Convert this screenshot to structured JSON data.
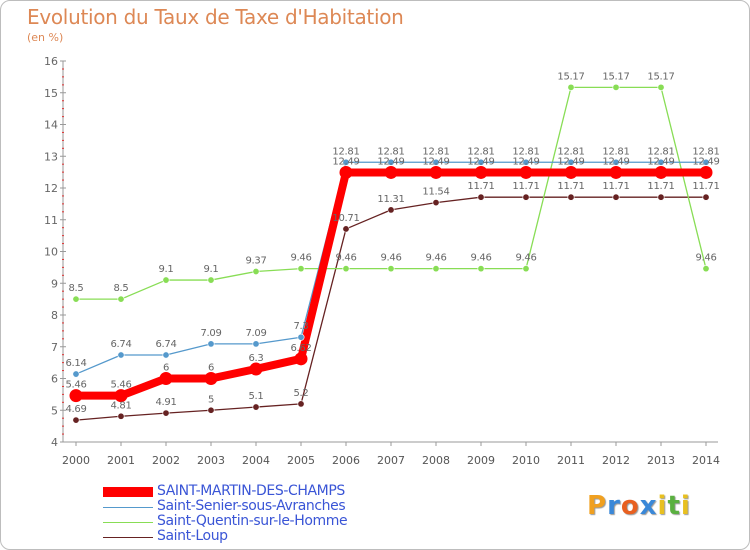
{
  "header": {
    "title": "Evolution du Taux de Taxe d'Habitation",
    "unit": "(en %)"
  },
  "brand": {
    "logo_text": "Proxiti"
  },
  "colors": {
    "saint_martin": "#ff0000",
    "saint_senier": "#5599cc",
    "saint_quentin": "#88dd55",
    "saint_loup": "#662222",
    "axis": "#888888",
    "title": "#dd8855",
    "legend_text": "#3a55d6"
  },
  "chart_data": {
    "type": "line",
    "title": "Evolution du Taux de Taxe d'Habitation",
    "subtitle": "(en %)",
    "xlabel": "",
    "ylabel": "",
    "x": [
      "2000",
      "2001",
      "2002",
      "2003",
      "2004",
      "2005",
      "2006",
      "2007",
      "2008",
      "2009",
      "2010",
      "2011",
      "2012",
      "2013",
      "2014"
    ],
    "ylim": [
      4,
      16
    ],
    "yticks": [
      "4",
      "5",
      "6",
      "7",
      "8",
      "9",
      "10",
      "11",
      "12",
      "13",
      "14",
      "15",
      "16"
    ],
    "grid": false,
    "legend_position": "bottom-left",
    "series": [
      {
        "name": "SAINT-MARTIN-DES-CHAMPS",
        "color": "#ff0000",
        "values": [
          5.46,
          5.46,
          6,
          6,
          6.3,
          6.62,
          12.49,
          12.49,
          12.49,
          12.49,
          12.49,
          12.49,
          12.49,
          12.49,
          12.49
        ],
        "labels": [
          "5.46",
          "5.46",
          "6",
          "6",
          "6.3",
          "6.62",
          "12.49",
          "12.49",
          "12.49",
          "12.49",
          "12.49",
          "12.49",
          "12.49",
          "12.49",
          "12.49"
        ]
      },
      {
        "name": "Saint-Senier-sous-Avranches",
        "color": "#5599cc",
        "values": [
          6.14,
          6.74,
          6.74,
          7.09,
          7.09,
          7.3,
          12.81,
          12.81,
          12.81,
          12.81,
          12.81,
          12.81,
          12.81,
          12.81,
          12.81
        ],
        "labels": [
          "6.14",
          "6.74",
          "6.74",
          "7.09",
          "7.09",
          "7.3",
          "12.81",
          "12.81",
          "12.81",
          "12.81",
          "12.81",
          "12.81",
          "12.81",
          "12.81",
          "12.81"
        ]
      },
      {
        "name": "Saint-Quentin-sur-le-Homme",
        "color": "#88dd55",
        "values": [
          8.5,
          8.5,
          9.1,
          9.1,
          9.37,
          9.46,
          9.46,
          9.46,
          9.46,
          9.46,
          9.46,
          15.17,
          15.17,
          15.17,
          9.46
        ],
        "labels": [
          "8.5",
          "8.5",
          "9.1",
          "9.1",
          "9.37",
          "9.46",
          "9.46",
          "9.46",
          "9.46",
          "9.46",
          "9.46",
          "15.17",
          "15.17",
          "15.17",
          "9.46"
        ]
      },
      {
        "name": "Saint-Loup",
        "color": "#662222",
        "values": [
          4.69,
          4.81,
          4.91,
          5,
          5.1,
          5.2,
          10.71,
          11.31,
          11.54,
          11.71,
          11.71,
          11.71,
          11.71,
          11.71,
          11.71
        ],
        "labels": [
          "4.69",
          "4.81",
          "4.91",
          "5",
          "5.1",
          "5.2",
          "10.71",
          "11.31",
          "11.54",
          "11.71",
          "11.71",
          "11.71",
          "11.71",
          "11.71",
          "11.71"
        ]
      }
    ]
  }
}
